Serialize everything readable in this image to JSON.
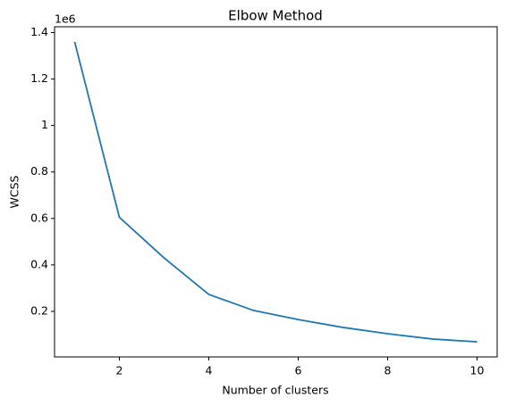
{
  "chart_data": {
    "type": "line",
    "title": "Elbow Method",
    "x_label": "Number of clusters",
    "y_label": "WCSS",
    "y_offset_label": "1e6",
    "x": [
      1,
      2,
      3,
      4,
      5,
      6,
      7,
      8,
      9,
      10
    ],
    "series": [
      {
        "name": "WCSS",
        "color": "#1f77b4",
        "values": [
          1.36,
          0.605,
          0.43,
          0.273,
          0.204,
          0.165,
          0.131,
          0.104,
          0.081,
          0.069
        ]
      }
    ],
    "xlim": [
      0.55,
      10.45
    ],
    "xticks": [
      2,
      4,
      6,
      8,
      10
    ],
    "ylim": [
      0.004,
      1.425
    ],
    "yticks": [
      0.2,
      0.4,
      0.6,
      0.8,
      1.0,
      1.2,
      1.4
    ],
    "grid": false
  }
}
